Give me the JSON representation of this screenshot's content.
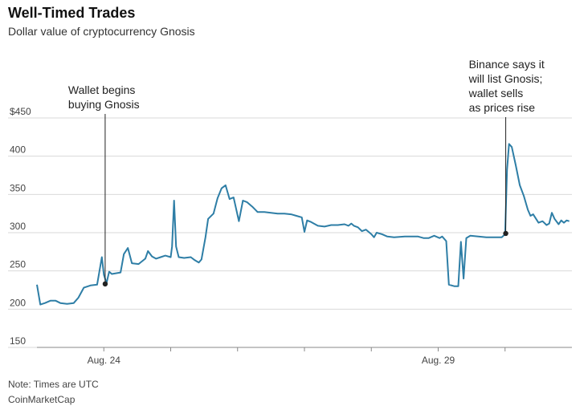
{
  "header": {
    "title": "Well-Timed Trades",
    "subtitle": "Dollar value of cryptocurrency Gnosis"
  },
  "footer": {
    "note": "Note: Times are UTC",
    "source": "CoinMarketCap"
  },
  "colors": {
    "line": "#2e7ea6",
    "grid": "#d9d9d9",
    "axis": "#888888",
    "annotation": "#222222"
  },
  "chart_data": {
    "type": "line",
    "title": "Well-Timed Trades",
    "subtitle": "Dollar value of cryptocurrency Gnosis",
    "xlabel": "",
    "ylabel": "",
    "x_range": [
      0,
      8
    ],
    "ylim": [
      150,
      450
    ],
    "y_ticks": [
      450,
      400,
      350,
      300,
      250,
      200,
      150
    ],
    "y_tick_labels": [
      "$450",
      "400",
      "350",
      "300",
      "250",
      "200",
      "150"
    ],
    "x_ticks": [
      {
        "x": 1.0,
        "label": "Aug. 24"
      },
      {
        "x": 2.0,
        "label": ""
      },
      {
        "x": 3.0,
        "label": ""
      },
      {
        "x": 4.0,
        "label": ""
      },
      {
        "x": 5.0,
        "label": ""
      },
      {
        "x": 6.0,
        "label": "Aug. 29"
      },
      {
        "x": 7.0,
        "label": ""
      }
    ],
    "grid": true,
    "series": [
      {
        "points": [
          [
            0.0,
            232
          ],
          [
            0.05,
            206
          ],
          [
            0.12,
            208
          ],
          [
            0.2,
            211
          ],
          [
            0.28,
            211
          ],
          [
            0.35,
            208
          ],
          [
            0.45,
            207
          ],
          [
            0.55,
            208
          ],
          [
            0.62,
            215
          ],
          [
            0.7,
            228
          ],
          [
            0.8,
            231
          ],
          [
            0.9,
            232
          ],
          [
            0.97,
            268
          ],
          [
            1.0,
            245
          ],
          [
            1.04,
            234
          ],
          [
            1.08,
            249
          ],
          [
            1.12,
            246
          ],
          [
            1.25,
            248
          ],
          [
            1.3,
            272
          ],
          [
            1.36,
            280
          ],
          [
            1.42,
            260
          ],
          [
            1.52,
            259
          ],
          [
            1.62,
            266
          ],
          [
            1.66,
            276
          ],
          [
            1.72,
            269
          ],
          [
            1.78,
            266
          ],
          [
            1.85,
            268
          ],
          [
            1.92,
            270
          ],
          [
            2.0,
            268
          ],
          [
            2.02,
            282
          ],
          [
            2.05,
            342
          ],
          [
            2.08,
            282
          ],
          [
            2.12,
            268
          ],
          [
            2.2,
            267
          ],
          [
            2.3,
            268
          ],
          [
            2.36,
            264
          ],
          [
            2.42,
            261
          ],
          [
            2.46,
            265
          ],
          [
            2.52,
            294
          ],
          [
            2.56,
            318
          ],
          [
            2.64,
            325
          ],
          [
            2.7,
            345
          ],
          [
            2.76,
            358
          ],
          [
            2.82,
            362
          ],
          [
            2.88,
            344
          ],
          [
            2.94,
            346
          ],
          [
            3.02,
            315
          ],
          [
            3.08,
            342
          ],
          [
            3.14,
            340
          ],
          [
            3.22,
            334
          ],
          [
            3.3,
            327
          ],
          [
            3.4,
            327
          ],
          [
            3.5,
            326
          ],
          [
            3.6,
            325
          ],
          [
            3.7,
            325
          ],
          [
            3.8,
            324
          ],
          [
            3.88,
            322
          ],
          [
            3.96,
            320
          ],
          [
            4.0,
            301
          ],
          [
            4.04,
            316
          ],
          [
            4.1,
            314
          ],
          [
            4.2,
            309
          ],
          [
            4.3,
            308
          ],
          [
            4.4,
            310
          ],
          [
            4.5,
            310
          ],
          [
            4.6,
            311
          ],
          [
            4.66,
            309
          ],
          [
            4.7,
            312
          ],
          [
            4.74,
            309
          ],
          [
            4.8,
            307
          ],
          [
            4.86,
            302
          ],
          [
            4.92,
            304
          ],
          [
            5.0,
            298
          ],
          [
            5.04,
            294
          ],
          [
            5.08,
            300
          ],
          [
            5.16,
            298
          ],
          [
            5.24,
            295
          ],
          [
            5.34,
            294
          ],
          [
            5.5,
            295
          ],
          [
            5.6,
            295
          ],
          [
            5.7,
            295
          ],
          [
            5.78,
            293
          ],
          [
            5.86,
            293
          ],
          [
            5.94,
            296
          ],
          [
            6.02,
            293
          ],
          [
            6.06,
            295
          ],
          [
            6.12,
            289
          ],
          [
            6.16,
            232
          ],
          [
            6.24,
            230
          ],
          [
            6.3,
            230
          ],
          [
            6.34,
            288
          ],
          [
            6.38,
            240
          ],
          [
            6.42,
            293
          ],
          [
            6.48,
            296
          ],
          [
            6.6,
            295
          ],
          [
            6.72,
            294
          ],
          [
            6.84,
            294
          ],
          [
            6.95,
            294
          ],
          [
            7.0,
            298
          ],
          [
            7.03,
            382
          ],
          [
            7.06,
            416
          ],
          [
            7.1,
            412
          ],
          [
            7.16,
            388
          ],
          [
            7.22,
            362
          ],
          [
            7.28,
            348
          ],
          [
            7.34,
            330
          ],
          [
            7.38,
            322
          ],
          [
            7.42,
            324
          ],
          [
            7.5,
            313
          ],
          [
            7.56,
            315
          ],
          [
            7.62,
            310
          ],
          [
            7.66,
            312
          ],
          [
            7.7,
            326
          ],
          [
            7.74,
            318
          ],
          [
            7.8,
            311
          ],
          [
            7.84,
            316
          ],
          [
            7.88,
            313
          ],
          [
            7.92,
            316
          ],
          [
            7.96,
            315
          ]
        ]
      }
    ],
    "annotations": [
      {
        "x": 1.02,
        "y": 233,
        "lines": [
          "Wallet begins",
          "buying Gnosis"
        ]
      },
      {
        "x": 7.01,
        "y": 299,
        "lines": [
          "Binance says it",
          "will list Gnosis;",
          "wallet sells",
          "as prices rise"
        ]
      }
    ]
  }
}
